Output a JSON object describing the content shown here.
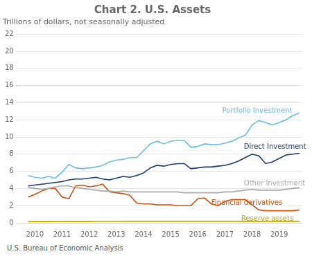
{
  "chart_data": {
    "type": "line",
    "title": "Chart 2. U.S. Assets",
    "subtitle": "Trillions of dollars, not seasonally adjusted",
    "footer": "U.S. Bureau of Economic Analysis",
    "x": [
      2009.75,
      2010.0,
      2010.25,
      2010.5,
      2010.75,
      2011.0,
      2011.25,
      2011.5,
      2011.75,
      2012.0,
      2012.25,
      2012.5,
      2012.75,
      2013.0,
      2013.25,
      2013.5,
      2013.75,
      2014.0,
      2014.25,
      2014.5,
      2014.75,
      2015.0,
      2015.25,
      2015.5,
      2015.75,
      2016.0,
      2016.25,
      2016.5,
      2016.75,
      2017.0,
      2017.25,
      2017.5,
      2017.75,
      2018.0,
      2018.25,
      2018.5,
      2018.75,
      2019.0,
      2019.25,
      2019.5,
      2019.75
    ],
    "series": [
      {
        "name": "Portfolio Investment",
        "color": "#6bbde0",
        "values": [
          5.5,
          5.3,
          5.2,
          5.4,
          5.2,
          5.9,
          6.8,
          6.4,
          6.3,
          6.4,
          6.5,
          6.7,
          7.1,
          7.3,
          7.4,
          7.6,
          7.6,
          8.4,
          9.2,
          9.5,
          9.2,
          9.5,
          9.6,
          9.6,
          8.8,
          8.9,
          9.2,
          9.1,
          9.1,
          9.3,
          9.5,
          9.9,
          10.2,
          11.4,
          11.9,
          11.7,
          11.4,
          11.7,
          12.0,
          12.5,
          12.8
        ]
      },
      {
        "name": "Direct Investment",
        "color": "#1a3a6e",
        "values": [
          4.3,
          4.4,
          4.5,
          4.6,
          4.7,
          4.8,
          5.0,
          5.1,
          5.1,
          5.2,
          5.3,
          5.1,
          5.0,
          5.2,
          5.4,
          5.3,
          5.5,
          5.8,
          6.4,
          6.7,
          6.6,
          6.8,
          6.9,
          6.9,
          6.3,
          6.4,
          6.5,
          6.5,
          6.6,
          6.7,
          6.9,
          7.2,
          7.6,
          8.0,
          7.8,
          6.9,
          7.1,
          7.5,
          7.9,
          8.0,
          8.1
        ]
      },
      {
        "name": "Other Investment",
        "color": "#aaaaaa",
        "values": [
          4.1,
          4.0,
          3.9,
          4.0,
          4.2,
          4.3,
          4.3,
          4.1,
          4.0,
          3.9,
          3.8,
          3.7,
          3.7,
          3.6,
          3.7,
          3.6,
          3.6,
          3.6,
          3.6,
          3.6,
          3.6,
          3.6,
          3.6,
          3.5,
          3.5,
          3.5,
          3.5,
          3.5,
          3.5,
          3.6,
          3.6,
          3.7,
          3.8,
          3.9,
          3.8,
          3.8,
          3.8,
          3.8,
          3.9,
          4.0,
          4.1
        ]
      },
      {
        "name": "Financial derivatives",
        "color": "#c85010",
        "values": [
          3.0,
          3.3,
          3.7,
          4.0,
          4.0,
          3.0,
          2.8,
          4.3,
          4.4,
          4.2,
          4.3,
          4.5,
          3.6,
          3.5,
          3.4,
          3.2,
          2.3,
          2.2,
          2.2,
          2.1,
          2.1,
          2.1,
          2.0,
          2.0,
          2.0,
          2.8,
          2.9,
          2.2,
          2.0,
          2.5,
          2.7,
          2.7,
          2.7,
          2.1,
          1.5,
          1.4,
          1.4,
          1.4,
          1.4,
          1.4,
          1.5
        ]
      },
      {
        "name": "Reserve assets",
        "color": "#c8a800",
        "values": [
          0.13,
          0.13,
          0.13,
          0.13,
          0.14,
          0.14,
          0.15,
          0.15,
          0.15,
          0.15,
          0.16,
          0.16,
          0.16,
          0.16,
          0.17,
          0.17,
          0.17,
          0.17,
          0.17,
          0.17,
          0.17,
          0.17,
          0.17,
          0.17,
          0.17,
          0.17,
          0.17,
          0.17,
          0.17,
          0.17,
          0.17,
          0.17,
          0.17,
          0.17,
          0.17,
          0.17,
          0.17,
          0.17,
          0.17,
          0.17,
          0.17
        ]
      }
    ],
    "annotations": [
      {
        "text": "Portfolio Investment",
        "x": 2016.9,
        "y": 13.0
      },
      {
        "text": "Direct Investment",
        "x": 2017.7,
        "y": 8.8
      },
      {
        "text": "Other Investment",
        "x": 2017.7,
        "y": 4.6
      },
      {
        "text": "Financial derivatives",
        "x": 2016.5,
        "y": 2.3
      },
      {
        "text": "Reserve assets",
        "x": 2017.6,
        "y": 0.42
      }
    ],
    "xlim": [
      2009.5,
      2019.85
    ],
    "xticks": [
      2010,
      2011,
      2012,
      2013,
      2014,
      2015,
      2016,
      2017,
      2018,
      2019
    ],
    "ylim": [
      0,
      22
    ],
    "yticks": [
      0,
      2,
      4,
      6,
      8,
      10,
      12,
      14,
      16,
      18,
      20,
      22
    ],
    "grid": true
  }
}
